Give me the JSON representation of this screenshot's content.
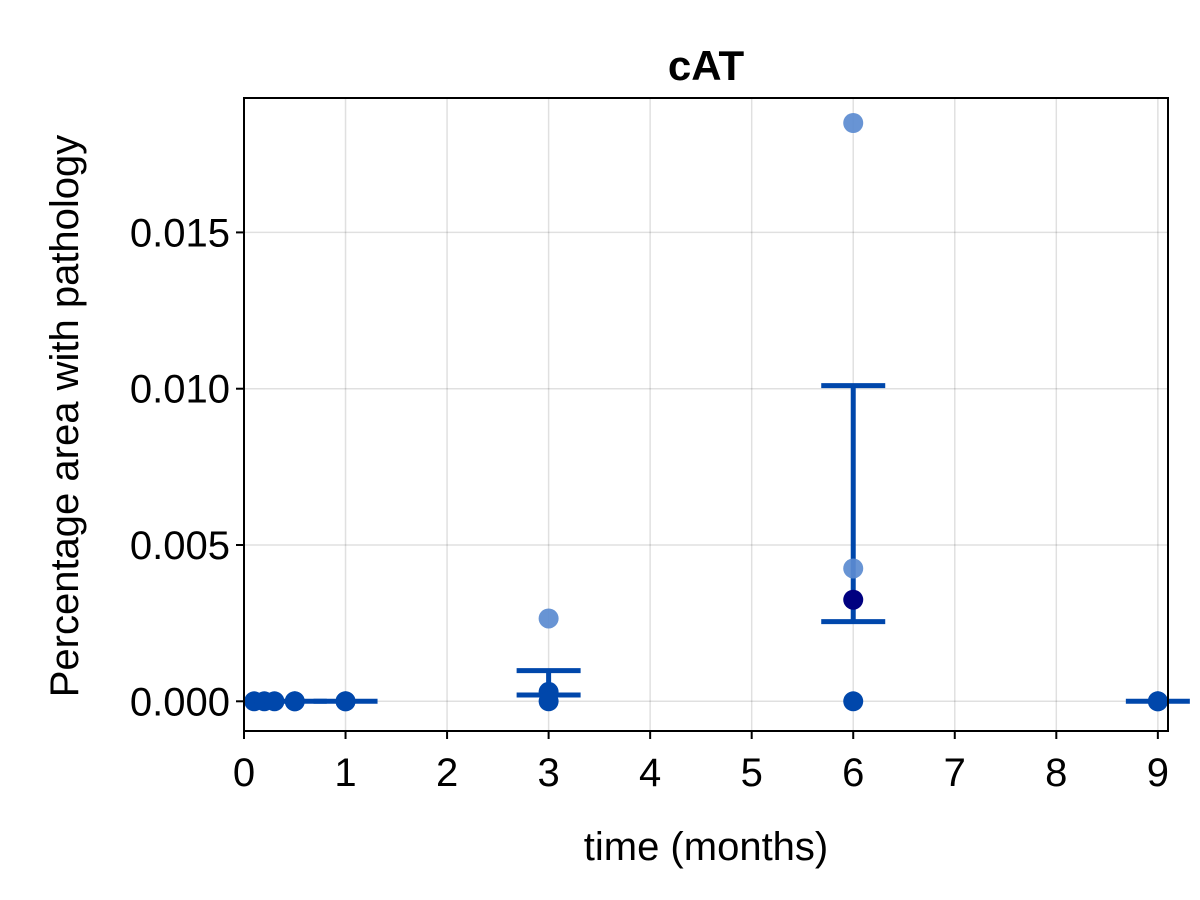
{
  "chart_data": {
    "type": "scatter",
    "title": "cAT",
    "xlabel": "time (months)",
    "ylabel": "Percentage area with pathology",
    "xlim": [
      0,
      9.1
    ],
    "ylim": [
      -0.00095,
      0.0193
    ],
    "xticks": [
      0,
      1,
      2,
      3,
      4,
      5,
      6,
      7,
      8,
      9
    ],
    "xtick_labels": [
      "0",
      "1",
      "2",
      "3",
      "4",
      "5",
      "6",
      "7",
      "8",
      "9"
    ],
    "yticks": [
      0.0,
      0.005,
      0.01,
      0.015
    ],
    "ytick_labels": [
      "0.000",
      "0.005",
      "0.010",
      "0.015"
    ],
    "grid": true,
    "legend": "none",
    "colors": {
      "individual": "#5b8bd0",
      "mean": "#000080",
      "error_bar": "#0047ab",
      "zero_point": "#0047ab"
    },
    "individual_points": [
      {
        "x": 3,
        "y": 0.00265
      },
      {
        "x": 6,
        "y": 0.0185
      },
      {
        "x": 6,
        "y": 0.00425
      }
    ],
    "zero_points": [
      {
        "x": 0.1,
        "y": 0.0
      },
      {
        "x": 0.2,
        "y": 0.0
      },
      {
        "x": 0.3,
        "y": 0.0
      },
      {
        "x": 0.5,
        "y": 0.0
      },
      {
        "x": 1,
        "y": 0.0
      },
      {
        "x": 3,
        "y": 0.0
      },
      {
        "x": 6,
        "y": 0.0
      },
      {
        "x": 9,
        "y": 0.0
      }
    ],
    "means": [
      {
        "x": 0.5,
        "y": 0.0
      },
      {
        "x": 1,
        "y": 0.0
      },
      {
        "x": 3,
        "y": 0.0003
      },
      {
        "x": 6,
        "y": 0.00325
      },
      {
        "x": 9,
        "y": 0.0
      }
    ],
    "error_bars": [
      {
        "x": 0.5,
        "low": 0.0,
        "high": 0.0
      },
      {
        "x": 1,
        "low": 0.0,
        "high": 0.0
      },
      {
        "x": 3,
        "low": 0.0002,
        "high": 0.00098
      },
      {
        "x": 6,
        "low": 0.00255,
        "high": 0.0101
      },
      {
        "x": 9,
        "low": 0.0,
        "high": 0.0
      }
    ]
  }
}
